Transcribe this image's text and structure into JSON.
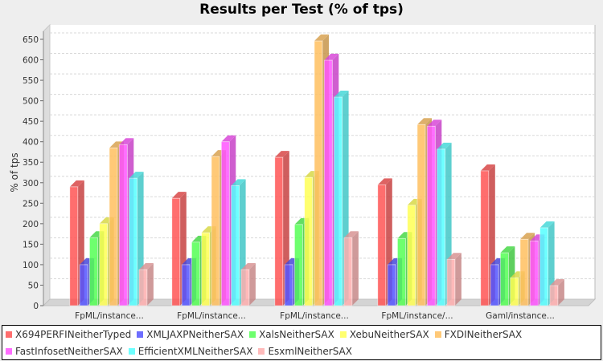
{
  "chart_data": {
    "type": "bar",
    "title": "Results per Test (% of tps)",
    "ylabel": "% of tps",
    "xlabel": "",
    "ylim": [
      0,
      650
    ],
    "yticks": [
      0,
      50,
      100,
      150,
      200,
      250,
      300,
      350,
      400,
      450,
      500,
      550,
      600,
      650
    ],
    "grid": true,
    "three_d": true,
    "legend_placement": "bottom",
    "categories": [
      "FpML/instance...",
      "FpML/instance...",
      "FpML/instance...",
      "FpML/instance/...",
      "Gaml/instance..."
    ],
    "series": [
      {
        "name": "X694PERFINeitherTyped",
        "color": "#ff5555",
        "values": [
          290,
          262,
          362,
          295,
          329
        ]
      },
      {
        "name": "XMLJAXPNeitherSAX",
        "color": "#5555ff",
        "values": [
          100,
          100,
          100,
          100,
          100
        ]
      },
      {
        "name": "XalsNeitherSAX",
        "color": "#55ff55",
        "values": [
          166,
          155,
          198,
          164,
          129
        ]
      },
      {
        "name": "XebuNeitherSAX",
        "color": "#ffff55",
        "values": [
          200,
          178,
          313,
          245,
          68
        ]
      },
      {
        "name": "FXDINeitherSAX",
        "color": "#ffc060",
        "values": [
          385,
          364,
          646,
          442,
          162
        ]
      },
      {
        "name": "FastInfosetNeitherSAX",
        "color": "#ff55ff",
        "values": [
          393,
          400,
          599,
          438,
          158
        ]
      },
      {
        "name": "EfficientXMLNeitherSAX",
        "color": "#55ffff",
        "values": [
          311,
          293,
          509,
          382,
          190
        ]
      },
      {
        "name": "EsxmlNeitherSAX",
        "color": "#ffafaf",
        "values": [
          88,
          88,
          166,
          113,
          49
        ]
      }
    ]
  }
}
